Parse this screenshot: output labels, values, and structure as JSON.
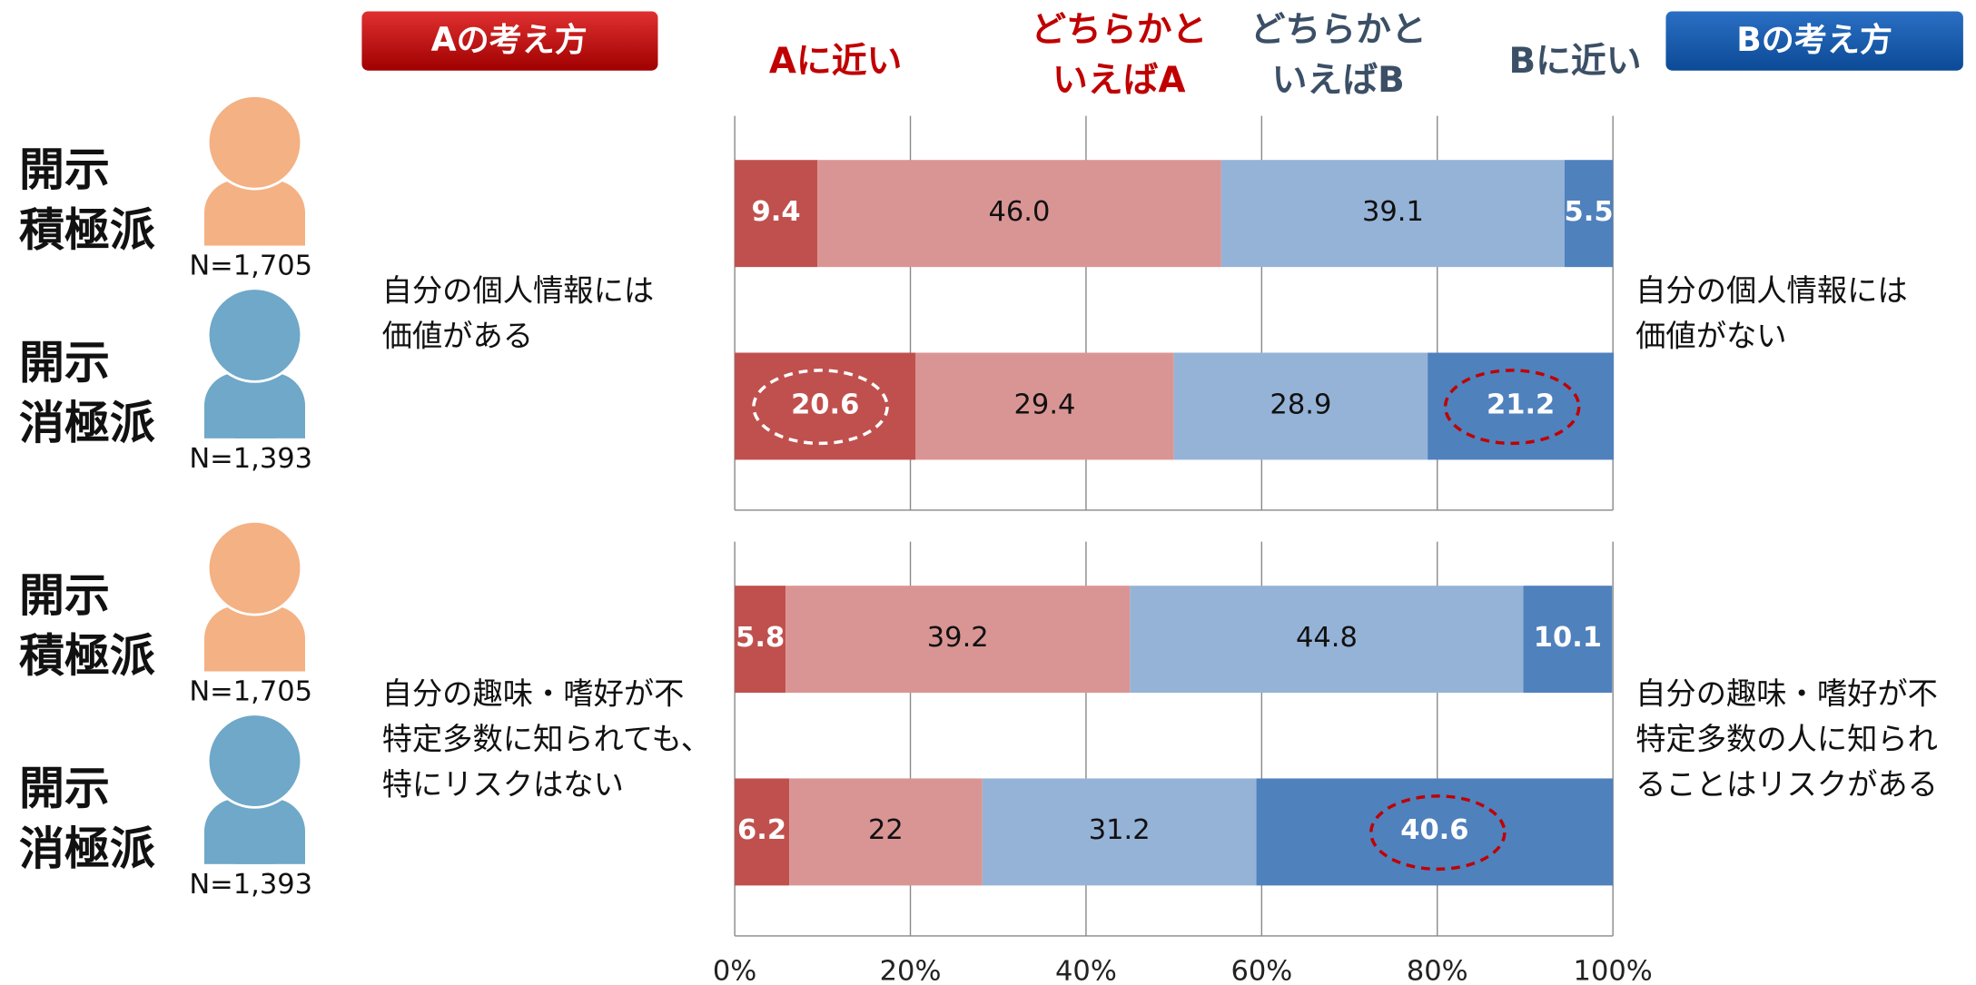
{
  "header": {
    "a_label": "Aの考え方",
    "b_label": "Bの考え方"
  },
  "chart_data": [
    {
      "type": "stacked_bar_h",
      "categories": [
        "開示積極派",
        "開示消極派"
      ],
      "n_labels": [
        "N=1,705",
        "N=1,393"
      ],
      "category_colors": [
        "#f4b183",
        "#6fa8c8"
      ],
      "left_text": [
        "自分の個人情報には",
        "価値がある"
      ],
      "right_text": [
        "自分の個人情報には",
        "価値がない"
      ],
      "xlim": [
        0,
        100
      ],
      "series": [
        {
          "name": "Aに近い",
          "color": "#c0504d",
          "values": [
            9.4,
            20.6
          ]
        },
        {
          "name": "どちらかといえばA",
          "color": "#d99594",
          "values": [
            46,
            29.4
          ],
          "value_labels": [
            "46.0",
            "29.4"
          ]
        },
        {
          "name": "どちらかといえばB",
          "color": "#95b3d7",
          "values": [
            39.1,
            28.9
          ]
        },
        {
          "name": "Bに近い",
          "color": "#4f81bd",
          "values": [
            5.5,
            21.2
          ]
        }
      ]
    },
    {
      "type": "stacked_bar_h",
      "categories": [
        "開示積極派",
        "開示消極派"
      ],
      "n_labels": [
        "N=1,705",
        "N=1,393"
      ],
      "category_colors": [
        "#f4b183",
        "#6fa8c8"
      ],
      "left_text": [
        "自分の趣味・嗜好が不",
        "特定多数に知られても、",
        "特にリスクはない"
      ],
      "right_text": [
        "自分の趣味・嗜好が不",
        "特定多数の人に知られ",
        "ることはリスクがある"
      ],
      "xlim": [
        0,
        100
      ],
      "xticks": [
        {
          "value": 0,
          "label": "0%"
        },
        {
          "value": 20,
          "label": "20%"
        },
        {
          "value": 40,
          "label": "40%"
        },
        {
          "value": 60,
          "label": "60%"
        },
        {
          "value": 80,
          "label": "80%"
        },
        {
          "value": 100,
          "label": "100%"
        }
      ],
      "series": [
        {
          "name": "Aに近い",
          "color": "#c0504d",
          "values": [
            5.8,
            6.2
          ]
        },
        {
          "name": "どちらかといえばA",
          "color": "#d99594",
          "values": [
            39.2,
            22
          ]
        },
        {
          "name": "どちらかといえばB",
          "color": "#95b3d7",
          "values": [
            44.8,
            31.2
          ]
        },
        {
          "name": "Bに近い",
          "color": "#4f81bd",
          "values": [
            10.1,
            40.6
          ]
        }
      ]
    }
  ]
}
